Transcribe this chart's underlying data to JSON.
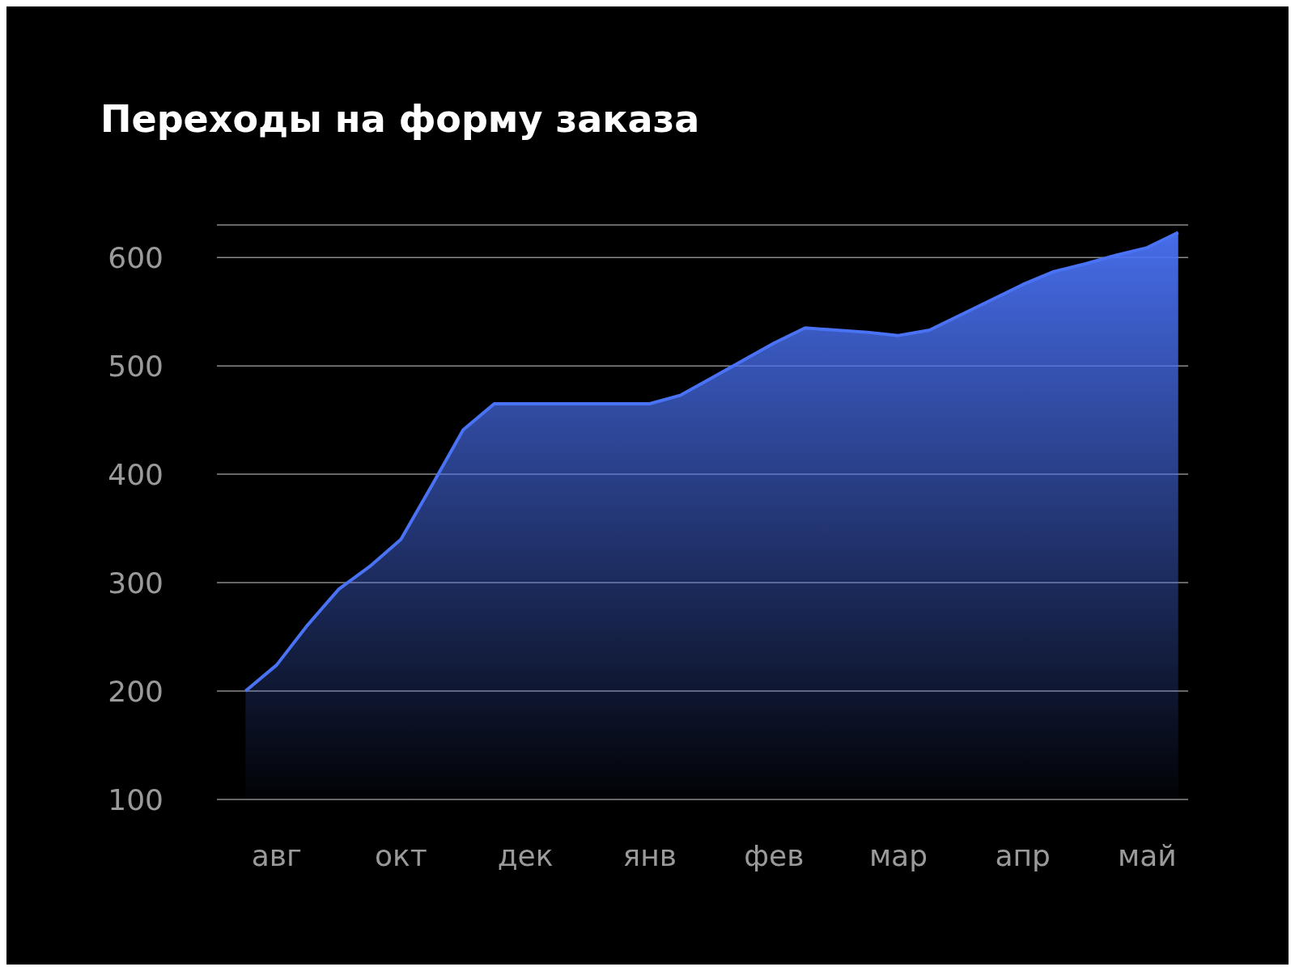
{
  "chart_data": {
    "type": "area",
    "title": "Переходы на форму заказа",
    "categories": [
      null,
      "авг",
      null,
      null,
      null,
      "окт",
      null,
      null,
      null,
      "дек",
      null,
      null,
      null,
      "янв",
      null,
      null,
      null,
      "фев",
      null,
      null,
      null,
      "мар",
      null,
      null,
      null,
      "апр",
      null,
      null,
      null,
      "май",
      null
    ],
    "series": [
      {
        "color": "#4a72f5",
        "values": [
          200,
          224,
          261,
          294,
          315,
          340,
          390,
          441,
          465,
          465,
          465,
          465,
          465,
          465,
          473,
          489,
          505,
          521,
          535,
          533,
          531,
          528,
          533,
          547,
          561,
          575,
          587,
          594,
          602,
          609,
          623
        ]
      }
    ],
    "ylim": [
      100,
      630
    ],
    "yticks": [
      100,
      200,
      300,
      400,
      500,
      600
    ],
    "grid": "y",
    "legend": false
  }
}
